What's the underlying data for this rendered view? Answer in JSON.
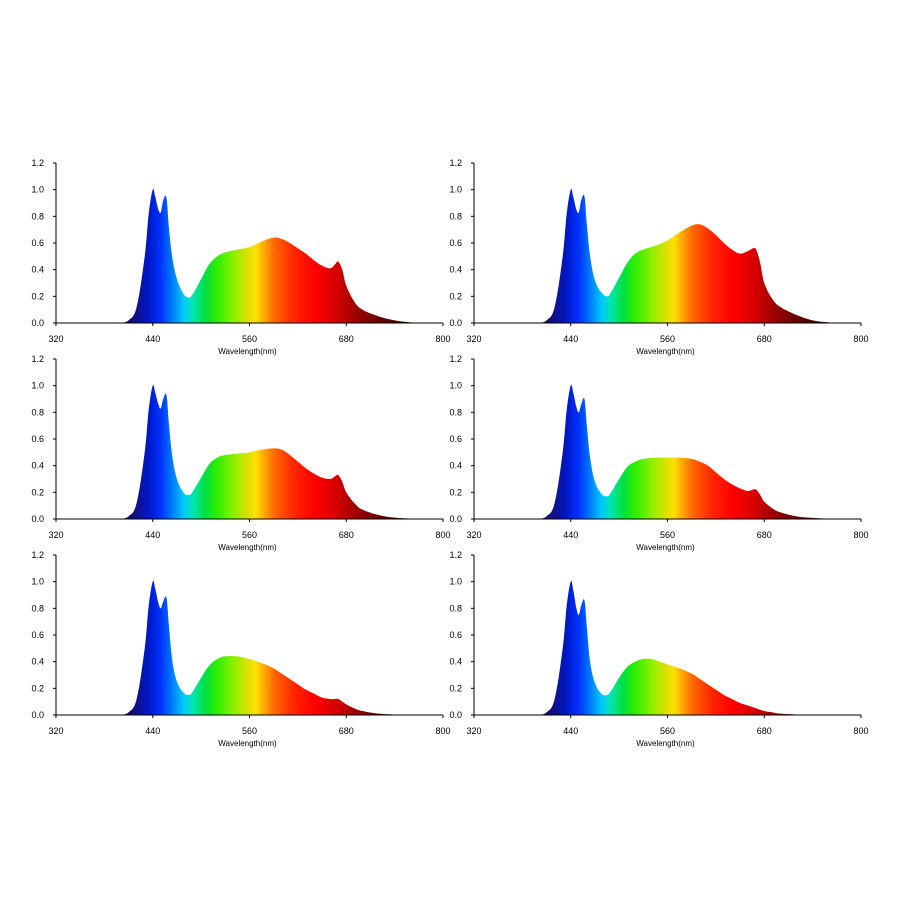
{
  "chart_data": [
    {
      "type": "area",
      "xlabel": "Wavelength(nm)",
      "ylabel": "",
      "xlim": [
        320,
        800
      ],
      "ylim": [
        0,
        1.2
      ],
      "xticks": [
        "320",
        "440",
        "560",
        "680",
        "800"
      ],
      "yticks": [
        "0.0",
        "0.2",
        "0.4",
        "0.6",
        "0.8",
        "1.0",
        "1.2"
      ],
      "grid": false,
      "x": [
        400,
        410,
        420,
        430,
        435,
        440,
        443,
        447,
        450,
        453,
        457,
        460,
        464,
        470,
        478,
        485,
        490,
        500,
        510,
        520,
        530,
        545,
        560,
        575,
        590,
        600,
        610,
        620,
        630,
        640,
        650,
        660,
        666,
        670,
        675,
        680,
        690,
        700,
        720,
        740,
        760,
        775,
        780
      ],
      "values": [
        0.0,
        0.02,
        0.12,
        0.5,
        0.82,
        1.0,
        0.95,
        0.85,
        0.83,
        0.92,
        0.94,
        0.72,
        0.5,
        0.33,
        0.22,
        0.19,
        0.22,
        0.33,
        0.44,
        0.5,
        0.53,
        0.55,
        0.57,
        0.61,
        0.64,
        0.63,
        0.6,
        0.56,
        0.52,
        0.47,
        0.43,
        0.41,
        0.44,
        0.46,
        0.4,
        0.28,
        0.16,
        0.1,
        0.05,
        0.02,
        0.005,
        0.0,
        0.0
      ]
    },
    {
      "type": "area",
      "xlabel": "Wavelength(nm)",
      "ylabel": "",
      "xlim": [
        320,
        800
      ],
      "ylim": [
        0,
        1.2
      ],
      "xticks": [
        "320",
        "440",
        "560",
        "680",
        "800"
      ],
      "yticks": [
        "0.0",
        "0.2",
        "0.4",
        "0.6",
        "0.8",
        "1.0",
        "1.2"
      ],
      "grid": false,
      "x": [
        400,
        410,
        420,
        430,
        435,
        440,
        443,
        447,
        450,
        453,
        457,
        460,
        464,
        470,
        478,
        485,
        490,
        500,
        510,
        520,
        530,
        545,
        560,
        575,
        590,
        600,
        610,
        620,
        630,
        640,
        650,
        660,
        666,
        670,
        675,
        680,
        690,
        700,
        720,
        740,
        760,
        775,
        780
      ],
      "values": [
        0.0,
        0.02,
        0.12,
        0.5,
        0.82,
        1.0,
        0.95,
        0.85,
        0.83,
        0.92,
        0.95,
        0.74,
        0.5,
        0.32,
        0.23,
        0.2,
        0.23,
        0.34,
        0.45,
        0.52,
        0.55,
        0.58,
        0.62,
        0.68,
        0.73,
        0.74,
        0.71,
        0.66,
        0.6,
        0.55,
        0.52,
        0.54,
        0.56,
        0.55,
        0.45,
        0.3,
        0.18,
        0.12,
        0.06,
        0.02,
        0.005,
        0.0,
        0.0
      ]
    },
    {
      "type": "area",
      "xlabel": "Wavelength(nm)",
      "ylabel": "",
      "xlim": [
        320,
        800
      ],
      "ylim": [
        0,
        1.2
      ],
      "xticks": [
        "320",
        "440",
        "560",
        "680",
        "800"
      ],
      "yticks": [
        "0.0",
        "0.2",
        "0.4",
        "0.6",
        "0.8",
        "1.0",
        "1.2"
      ],
      "grid": false,
      "x": [
        400,
        410,
        420,
        430,
        435,
        440,
        443,
        447,
        450,
        453,
        457,
        460,
        464,
        470,
        478,
        485,
        490,
        500,
        510,
        520,
        530,
        545,
        560,
        575,
        590,
        600,
        610,
        620,
        630,
        640,
        650,
        660,
        666,
        670,
        675,
        680,
        690,
        700,
        720,
        740,
        760,
        770,
        775
      ],
      "values": [
        0.0,
        0.02,
        0.12,
        0.5,
        0.82,
        1.0,
        0.95,
        0.86,
        0.83,
        0.9,
        0.93,
        0.72,
        0.48,
        0.3,
        0.2,
        0.18,
        0.21,
        0.31,
        0.41,
        0.46,
        0.48,
        0.49,
        0.5,
        0.52,
        0.53,
        0.52,
        0.48,
        0.43,
        0.38,
        0.34,
        0.31,
        0.3,
        0.32,
        0.33,
        0.28,
        0.2,
        0.12,
        0.07,
        0.03,
        0.01,
        0.003,
        0.0,
        0.0
      ]
    },
    {
      "type": "area",
      "xlabel": "Wavelength(nm)",
      "ylabel": "",
      "xlim": [
        320,
        800
      ],
      "ylim": [
        0,
        1.2
      ],
      "xticks": [
        "320",
        "440",
        "560",
        "680",
        "800"
      ],
      "yticks": [
        "0.0",
        "0.2",
        "0.4",
        "0.6",
        "0.8",
        "1.0",
        "1.2"
      ],
      "grid": false,
      "x": [
        400,
        410,
        420,
        430,
        435,
        440,
        443,
        447,
        450,
        453,
        457,
        460,
        464,
        470,
        478,
        485,
        490,
        500,
        510,
        520,
        530,
        545,
        560,
        575,
        590,
        600,
        610,
        620,
        630,
        640,
        650,
        660,
        666,
        670,
        675,
        680,
        690,
        700,
        720,
        740,
        760,
        770,
        775
      ],
      "values": [
        0.0,
        0.02,
        0.12,
        0.5,
        0.82,
        1.0,
        0.95,
        0.84,
        0.8,
        0.86,
        0.9,
        0.7,
        0.46,
        0.28,
        0.19,
        0.17,
        0.2,
        0.3,
        0.39,
        0.43,
        0.45,
        0.46,
        0.46,
        0.46,
        0.45,
        0.43,
        0.4,
        0.35,
        0.3,
        0.26,
        0.23,
        0.21,
        0.22,
        0.22,
        0.18,
        0.13,
        0.08,
        0.05,
        0.02,
        0.008,
        0.002,
        0.0,
        0.0
      ]
    },
    {
      "type": "area",
      "xlabel": "Wavelength(nm)",
      "ylabel": "",
      "xlim": [
        320,
        800
      ],
      "ylim": [
        0,
        1.2
      ],
      "xticks": [
        "320",
        "440",
        "560",
        "680",
        "800"
      ],
      "yticks": [
        "0.0",
        "0.2",
        "0.4",
        "0.6",
        "0.8",
        "1.0",
        "1.2"
      ],
      "grid": false,
      "x": [
        400,
        410,
        420,
        430,
        435,
        440,
        443,
        447,
        450,
        453,
        457,
        460,
        464,
        470,
        478,
        485,
        490,
        500,
        510,
        520,
        530,
        545,
        560,
        575,
        590,
        600,
        610,
        620,
        630,
        640,
        650,
        660,
        666,
        670,
        675,
        680,
        690,
        700,
        720,
        740,
        750,
        760
      ],
      "values": [
        0.0,
        0.02,
        0.12,
        0.5,
        0.82,
        1.0,
        0.95,
        0.84,
        0.8,
        0.85,
        0.88,
        0.68,
        0.42,
        0.25,
        0.17,
        0.15,
        0.18,
        0.28,
        0.37,
        0.42,
        0.44,
        0.44,
        0.42,
        0.39,
        0.35,
        0.31,
        0.27,
        0.23,
        0.19,
        0.16,
        0.13,
        0.12,
        0.12,
        0.12,
        0.1,
        0.08,
        0.05,
        0.03,
        0.01,
        0.003,
        0.0,
        0.0
      ]
    },
    {
      "type": "area",
      "xlabel": "Wavelength(nm)",
      "ylabel": "",
      "xlim": [
        320,
        800
      ],
      "ylim": [
        0,
        1.2
      ],
      "xticks": [
        "320",
        "440",
        "560",
        "680",
        "800"
      ],
      "yticks": [
        "0.0",
        "0.2",
        "0.4",
        "0.6",
        "0.8",
        "1.0",
        "1.2"
      ],
      "grid": false,
      "x": [
        400,
        410,
        420,
        430,
        435,
        440,
        443,
        447,
        450,
        453,
        457,
        460,
        464,
        470,
        478,
        485,
        490,
        500,
        510,
        520,
        530,
        540,
        550,
        560,
        575,
        590,
        600,
        610,
        620,
        630,
        640,
        650,
        660,
        670,
        680,
        690,
        700,
        720,
        740,
        750,
        760
      ],
      "values": [
        0.0,
        0.02,
        0.12,
        0.5,
        0.82,
        1.0,
        0.94,
        0.8,
        0.75,
        0.82,
        0.86,
        0.66,
        0.4,
        0.24,
        0.16,
        0.15,
        0.18,
        0.28,
        0.36,
        0.4,
        0.42,
        0.42,
        0.4,
        0.38,
        0.35,
        0.31,
        0.27,
        0.23,
        0.19,
        0.15,
        0.12,
        0.09,
        0.07,
        0.05,
        0.03,
        0.02,
        0.01,
        0.004,
        0.001,
        0.0,
        0.0
      ]
    }
  ]
}
